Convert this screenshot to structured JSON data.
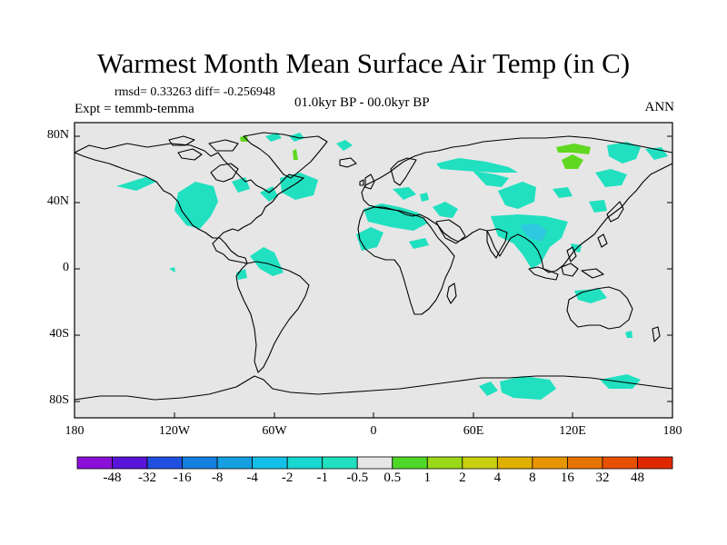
{
  "title": "Warmest Month Mean Surface Air Temp (in C)",
  "stats": "rmsd= 0.33263 diff= -0.256948",
  "experiment": "Expt = temmb-temma",
  "period": "01.0kyr BP - 00.0kyr BP",
  "season": "ANN",
  "lat_labels": [
    "80N",
    "40N",
    "0",
    "40S",
    "80S"
  ],
  "lon_labels": [
    "180",
    "120W",
    "60W",
    "0",
    "60E",
    "120E",
    "180"
  ],
  "legend": {
    "colors": [
      "#8a10d8",
      "#5a14d8",
      "#2050e0",
      "#1480e0",
      "#14a0e0",
      "#14c0e8",
      "#18d8d0",
      "#20e0c0",
      "#e6e6e6",
      "#50d828",
      "#9ad818",
      "#c8d010",
      "#e0b000",
      "#e89600",
      "#e87400",
      "#e85000",
      "#e02800"
    ],
    "labels": [
      "-48",
      "-32",
      "-16",
      "-8",
      "-4",
      "-2",
      "-1",
      "-0.5",
      "0.5",
      "1",
      "2",
      "4",
      "8",
      "16",
      "32",
      "48"
    ]
  },
  "colors": {
    "ocean": "#e6e6e6",
    "cool": "#20e0c0",
    "warm": "#60d820"
  }
}
